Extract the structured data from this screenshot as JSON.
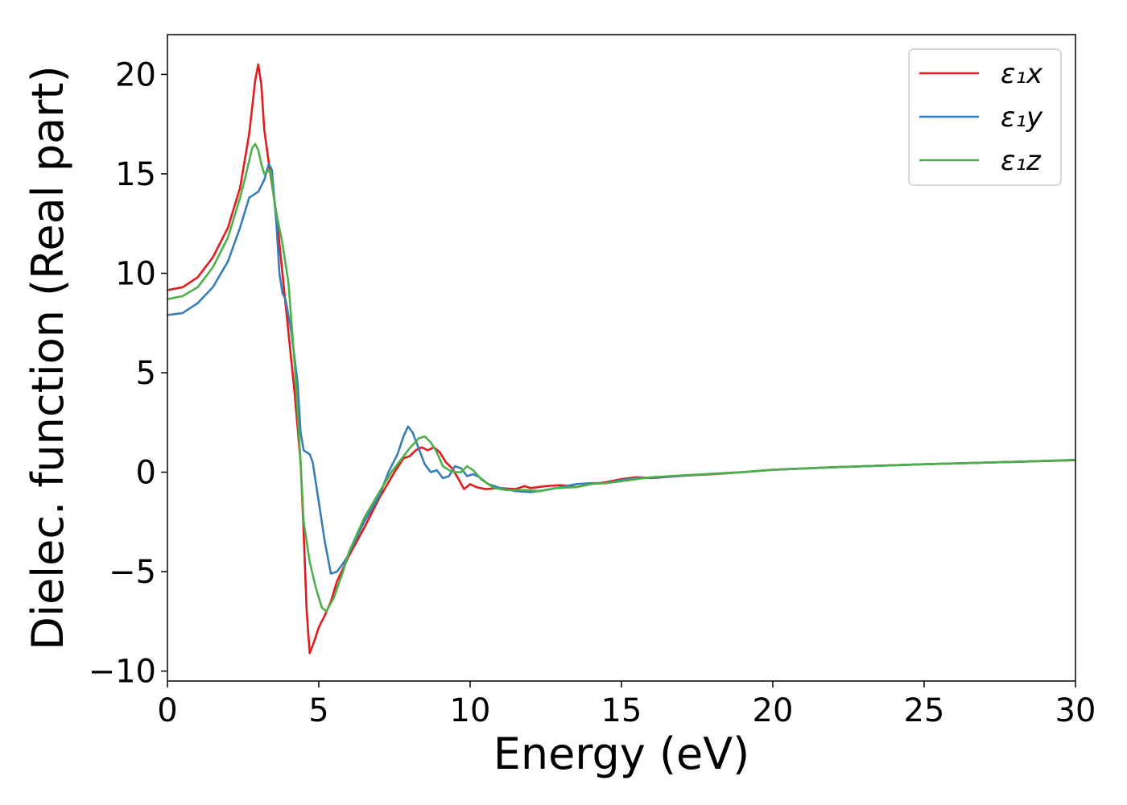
{
  "chart_data": {
    "type": "line",
    "title": "",
    "xlabel": "Energy (eV)",
    "ylabel": "Dielec. function (Real part)",
    "xlim": [
      0,
      30
    ],
    "ylim": [
      -10.5,
      22
    ],
    "grid": false,
    "legend_position": "top-right",
    "x_ticks": [
      0,
      5,
      10,
      15,
      20,
      25,
      30
    ],
    "x_tick_labels": [
      "0",
      "5",
      "10",
      "15",
      "20",
      "25",
      "30"
    ],
    "y_ticks": [
      -10,
      -5,
      0,
      5,
      10,
      15,
      20
    ],
    "y_tick_labels": [
      "−10",
      "−5",
      "0",
      "5",
      "10",
      "15",
      "20"
    ],
    "series": [
      {
        "name": "ε₁x",
        "color": "#e41a1c",
        "points": [
          [
            0,
            9.15
          ],
          [
            0.5,
            9.3
          ],
          [
            1.0,
            9.8
          ],
          [
            1.5,
            10.8
          ],
          [
            2.0,
            12.3
          ],
          [
            2.4,
            14.3
          ],
          [
            2.7,
            17.0
          ],
          [
            2.9,
            19.7
          ],
          [
            3.0,
            20.5
          ],
          [
            3.1,
            19.5
          ],
          [
            3.2,
            17.2
          ],
          [
            3.4,
            15.0
          ],
          [
            3.6,
            13.0
          ],
          [
            3.8,
            10.0
          ],
          [
            4.0,
            7.0
          ],
          [
            4.2,
            4.0
          ],
          [
            4.4,
            0.5
          ],
          [
            4.5,
            -3.0
          ],
          [
            4.6,
            -7.0
          ],
          [
            4.7,
            -9.1
          ],
          [
            4.85,
            -8.5
          ],
          [
            5.0,
            -7.8
          ],
          [
            5.2,
            -7.2
          ],
          [
            5.4,
            -6.5
          ],
          [
            5.6,
            -5.5
          ],
          [
            6.0,
            -4.2
          ],
          [
            6.5,
            -2.8
          ],
          [
            7.0,
            -1.3
          ],
          [
            7.5,
            0.0
          ],
          [
            7.8,
            0.7
          ],
          [
            8.0,
            0.8
          ],
          [
            8.2,
            1.1
          ],
          [
            8.4,
            1.25
          ],
          [
            8.6,
            1.1
          ],
          [
            8.8,
            1.25
          ],
          [
            9.0,
            1.0
          ],
          [
            9.2,
            0.5
          ],
          [
            9.4,
            0.2
          ],
          [
            9.6,
            -0.3
          ],
          [
            9.8,
            -0.85
          ],
          [
            10.0,
            -0.6
          ],
          [
            10.2,
            -0.75
          ],
          [
            10.5,
            -0.85
          ],
          [
            11.0,
            -0.8
          ],
          [
            11.5,
            -0.85
          ],
          [
            11.8,
            -0.7
          ],
          [
            12.0,
            -0.8
          ],
          [
            12.5,
            -0.7
          ],
          [
            13.0,
            -0.65
          ],
          [
            13.5,
            -0.75
          ],
          [
            14.0,
            -0.6
          ],
          [
            14.5,
            -0.5
          ],
          [
            15.0,
            -0.35
          ],
          [
            15.5,
            -0.25
          ],
          [
            16.0,
            -0.3
          ],
          [
            17.0,
            -0.18
          ],
          [
            18.0,
            -0.1
          ],
          [
            19.0,
            0.0
          ],
          [
            20.0,
            0.12
          ],
          [
            22.0,
            0.25
          ],
          [
            25.0,
            0.4
          ],
          [
            28.0,
            0.52
          ],
          [
            30.0,
            0.6
          ]
        ]
      },
      {
        "name": "ε₁y",
        "color": "#377eb8",
        "points": [
          [
            0,
            7.9
          ],
          [
            0.5,
            8.0
          ],
          [
            1.0,
            8.5
          ],
          [
            1.5,
            9.3
          ],
          [
            2.0,
            10.6
          ],
          [
            2.4,
            12.3
          ],
          [
            2.7,
            13.8
          ],
          [
            2.85,
            13.95
          ],
          [
            3.0,
            14.1
          ],
          [
            3.2,
            14.7
          ],
          [
            3.35,
            15.5
          ],
          [
            3.45,
            15.2
          ],
          [
            3.6,
            12.5
          ],
          [
            3.7,
            10.0
          ],
          [
            3.8,
            9.0
          ],
          [
            3.9,
            8.7
          ],
          [
            4.1,
            7.0
          ],
          [
            4.3,
            4.5
          ],
          [
            4.4,
            2.0
          ],
          [
            4.5,
            1.1
          ],
          [
            4.7,
            0.9
          ],
          [
            4.8,
            0.5
          ],
          [
            5.0,
            -1.5
          ],
          [
            5.2,
            -3.5
          ],
          [
            5.4,
            -5.1
          ],
          [
            5.6,
            -5.0
          ],
          [
            5.8,
            -4.6
          ],
          [
            6.0,
            -4.1
          ],
          [
            6.5,
            -2.5
          ],
          [
            7.0,
            -1.2
          ],
          [
            7.3,
            0.0
          ],
          [
            7.6,
            0.9
          ],
          [
            7.8,
            1.8
          ],
          [
            7.95,
            2.3
          ],
          [
            8.1,
            2.0
          ],
          [
            8.3,
            1.2
          ],
          [
            8.5,
            0.4
          ],
          [
            8.7,
            0.0
          ],
          [
            8.9,
            0.1
          ],
          [
            9.1,
            -0.3
          ],
          [
            9.3,
            -0.2
          ],
          [
            9.5,
            0.3
          ],
          [
            9.7,
            0.2
          ],
          [
            9.9,
            -0.2
          ],
          [
            10.1,
            -0.1
          ],
          [
            10.3,
            -0.25
          ],
          [
            10.6,
            -0.6
          ],
          [
            11.0,
            -0.8
          ],
          [
            11.5,
            -0.95
          ],
          [
            12.0,
            -1.0
          ],
          [
            12.5,
            -0.9
          ],
          [
            13.0,
            -0.75
          ],
          [
            13.5,
            -0.6
          ],
          [
            14.0,
            -0.55
          ],
          [
            14.5,
            -0.55
          ],
          [
            15.0,
            -0.4
          ],
          [
            15.5,
            -0.3
          ],
          [
            16.0,
            -0.28
          ],
          [
            17.0,
            -0.18
          ],
          [
            18.0,
            -0.08
          ],
          [
            19.0,
            0.0
          ],
          [
            20.0,
            0.12
          ],
          [
            22.0,
            0.25
          ],
          [
            25.0,
            0.4
          ],
          [
            28.0,
            0.52
          ],
          [
            30.0,
            0.62
          ]
        ]
      },
      {
        "name": "ε₁z",
        "color": "#4daf4a",
        "points": [
          [
            0,
            8.7
          ],
          [
            0.5,
            8.85
          ],
          [
            1.0,
            9.3
          ],
          [
            1.5,
            10.3
          ],
          [
            2.0,
            11.8
          ],
          [
            2.4,
            13.8
          ],
          [
            2.6,
            15.0
          ],
          [
            2.8,
            16.3
          ],
          [
            2.9,
            16.5
          ],
          [
            3.0,
            16.2
          ],
          [
            3.1,
            15.5
          ],
          [
            3.2,
            15.0
          ],
          [
            3.3,
            15.1
          ],
          [
            3.4,
            15.2
          ],
          [
            3.5,
            14.0
          ],
          [
            3.6,
            13.0
          ],
          [
            3.8,
            11.5
          ],
          [
            4.0,
            9.5
          ],
          [
            4.2,
            5.5
          ],
          [
            4.4,
            0.5
          ],
          [
            4.5,
            -2.5
          ],
          [
            4.7,
            -4.5
          ],
          [
            4.9,
            -5.8
          ],
          [
            5.1,
            -6.8
          ],
          [
            5.25,
            -7.0
          ],
          [
            5.5,
            -6.3
          ],
          [
            5.8,
            -5.0
          ],
          [
            6.0,
            -4.0
          ],
          [
            6.5,
            -2.3
          ],
          [
            7.0,
            -1.0
          ],
          [
            7.4,
            0.0
          ],
          [
            7.7,
            0.6
          ],
          [
            8.0,
            1.2
          ],
          [
            8.3,
            1.7
          ],
          [
            8.5,
            1.8
          ],
          [
            8.7,
            1.5
          ],
          [
            8.9,
            1.0
          ],
          [
            9.1,
            0.3
          ],
          [
            9.3,
            0.1
          ],
          [
            9.5,
            0.0
          ],
          [
            9.7,
            0.0
          ],
          [
            9.9,
            0.3
          ],
          [
            10.1,
            0.1
          ],
          [
            10.4,
            -0.4
          ],
          [
            10.8,
            -0.8
          ],
          [
            11.2,
            -0.9
          ],
          [
            11.8,
            -0.9
          ],
          [
            12.3,
            -0.95
          ],
          [
            12.8,
            -0.8
          ],
          [
            13.5,
            -0.75
          ],
          [
            14.0,
            -0.6
          ],
          [
            14.5,
            -0.55
          ],
          [
            15.0,
            -0.45
          ],
          [
            15.5,
            -0.35
          ],
          [
            16.0,
            -0.25
          ],
          [
            17.0,
            -0.16
          ],
          [
            18.0,
            -0.08
          ],
          [
            19.0,
            0.0
          ],
          [
            20.0,
            0.12
          ],
          [
            22.0,
            0.25
          ],
          [
            25.0,
            0.4
          ],
          [
            28.0,
            0.52
          ],
          [
            30.0,
            0.62
          ]
        ]
      }
    ]
  }
}
